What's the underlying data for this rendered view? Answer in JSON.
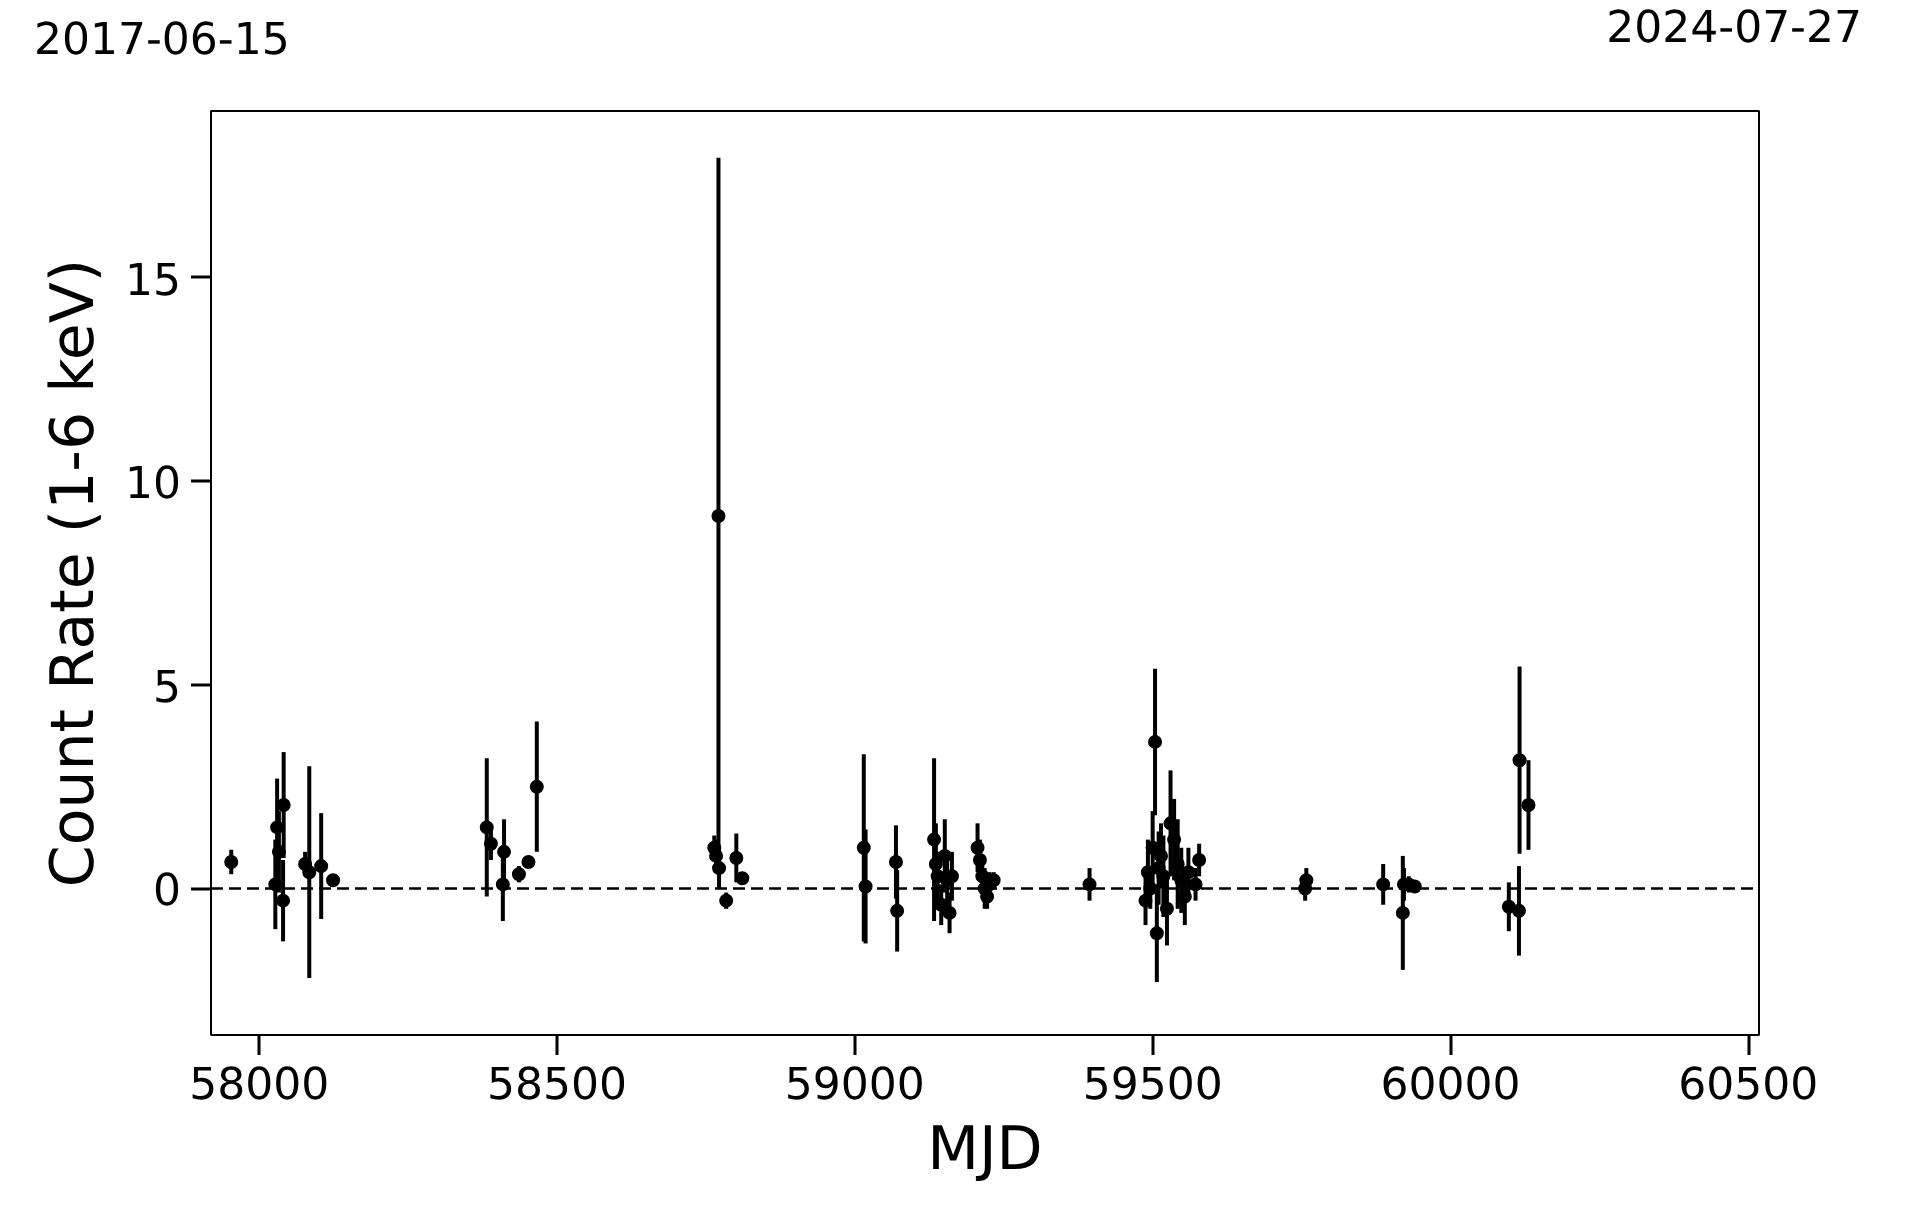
{
  "chart_data": {
    "type": "scatter",
    "xlabel": "MJD",
    "ylabel": "Count Rate (1-6 keV)",
    "x": [
      57953,
      58027,
      58030,
      58033,
      58040,
      58041,
      58077,
      58084,
      58104,
      58124,
      58382,
      58389,
      58409,
      58411,
      58436,
      58452,
      58466,
      58764,
      58767,
      58771,
      58772,
      58784,
      58801,
      58811,
      59015,
      59018,
      59069,
      59071,
      59133,
      59136,
      59139,
      59145,
      59151,
      59155,
      59159,
      59163,
      59206,
      59210,
      59214,
      59218,
      59222,
      59226,
      59233,
      59394,
      59488,
      59492,
      59496,
      59500,
      59504,
      59507,
      59510,
      59514,
      59518,
      59524,
      59530,
      59536,
      59542,
      59548,
      59554,
      59560,
      59572,
      59578,
      59756,
      59758,
      59887,
      59920,
      59922,
      59930,
      59940,
      60098,
      60115,
      60116,
      60131
    ],
    "series": [
      {
        "color": "#000000",
        "values": [
          0.65,
          0.1,
          1.5,
          0.9,
          -0.3,
          2.05,
          0.6,
          0.4,
          0.55,
          0.2,
          1.5,
          1.1,
          0.1,
          0.9,
          0.35,
          0.65,
          2.5,
          1.0,
          0.8,
          9.15,
          0.5,
          -0.3,
          0.75,
          0.25,
          1.0,
          0.05,
          0.65,
          -0.55,
          1.2,
          0.6,
          0.3,
          -0.4,
          0.8,
          0.2,
          -0.6,
          0.3,
          1.0,
          0.7,
          0.3,
          0.0,
          -0.2,
          0.1,
          0.2,
          0.1,
          -0.3,
          0.4,
          0.0,
          1.0,
          3.6,
          -1.1,
          0.5,
          0.8,
          0.3,
          -0.5,
          1.6,
          1.2,
          0.6,
          0.2,
          -0.2,
          0.4,
          0.1,
          0.7,
          0.0,
          0.2,
          0.1,
          -0.6,
          0.1,
          0.1,
          0.05,
          -0.45,
          -0.55,
          3.15,
          2.05
        ],
        "errors": [
          0.3,
          1.1,
          1.2,
          1.0,
          1.0,
          1.3,
          0.3,
          2.6,
          1.3,
          0.15,
          1.7,
          0.4,
          0.9,
          0.8,
          0.2,
          0.15,
          1.6,
          0.3,
          0.4,
          8.8,
          0.5,
          0.2,
          0.6,
          0.15,
          2.3,
          1.4,
          0.9,
          1.0,
          2.0,
          1.0,
          0.6,
          0.5,
          0.9,
          0.7,
          0.5,
          0.6,
          0.6,
          0.5,
          0.4,
          0.5,
          0.3,
          0.3,
          0.2,
          0.4,
          0.6,
          0.8,
          0.5,
          0.9,
          1.8,
          1.2,
          0.9,
          0.8,
          1.0,
          0.9,
          1.3,
          1.0,
          1.1,
          0.8,
          0.7,
          0.6,
          0.4,
          0.4,
          0.3,
          0.3,
          0.5,
          1.4,
          0.4,
          0.2,
          0.15,
          0.6,
          1.1,
          2.3,
          1.1
        ]
      }
    ],
    "marker": "circle",
    "xlim": [
      57919,
      60518
    ],
    "xticks": [
      58000,
      58500,
      59000,
      59500,
      60000,
      60500
    ],
    "ylim": [
      -3.6,
      19.1
    ],
    "yticks": [
      0,
      5,
      10,
      15
    ],
    "annotations": [
      "2017-06-15",
      "2024-07-27"
    ],
    "ref_lines": [
      {
        "axis": "y",
        "value": 0,
        "color": "#000000",
        "line_style": "dashed"
      }
    ],
    "grid": false
  }
}
